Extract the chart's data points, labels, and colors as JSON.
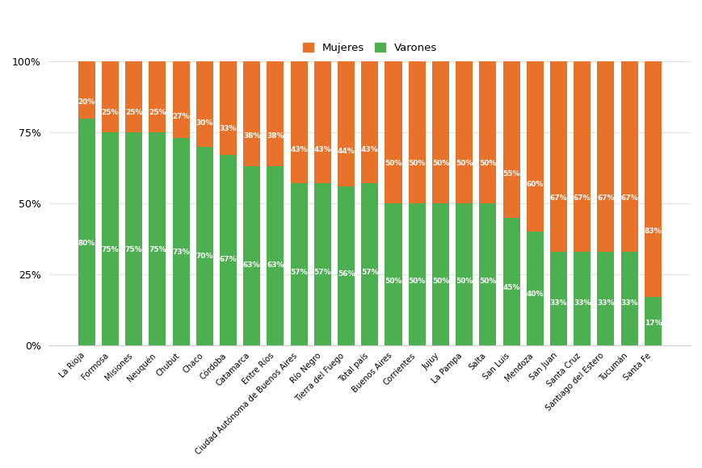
{
  "categories": [
    "La Rioja",
    "Formosa",
    "Misiones",
    "Neuquén",
    "Chubut",
    "Chaco",
    "Córdoba",
    "Catamarca",
    "Entre Ríos",
    "Ciudad Autónoma de Buenos Aires",
    "Río Negro",
    "Tierra del Fuego",
    "Total país",
    "Buenos Aires",
    "Corrientes",
    "Jujuy",
    "La Pampa",
    "Salta",
    "San Luis",
    "Mendoza",
    "San Juan",
    "Santa Cruz",
    "Santiago del Estero",
    "Tucumán",
    "Santa Fe"
  ],
  "mujeres": [
    20,
    25,
    25,
    25,
    27,
    30,
    33,
    38,
    38,
    43,
    43,
    44,
    43,
    50,
    50,
    50,
    50,
    50,
    55,
    60,
    67,
    67,
    67,
    67,
    83
  ],
  "varones": [
    80,
    75,
    75,
    75,
    73,
    70,
    67,
    63,
    63,
    57,
    57,
    56,
    57,
    50,
    50,
    50,
    50,
    50,
    45,
    40,
    33,
    33,
    33,
    33,
    17
  ],
  "color_mujeres": "#E8722A",
  "color_varones": "#4CAF50",
  "background_color": "#FFFFFF",
  "ylim": [
    0,
    100
  ],
  "label_fontsize": 6.5
}
